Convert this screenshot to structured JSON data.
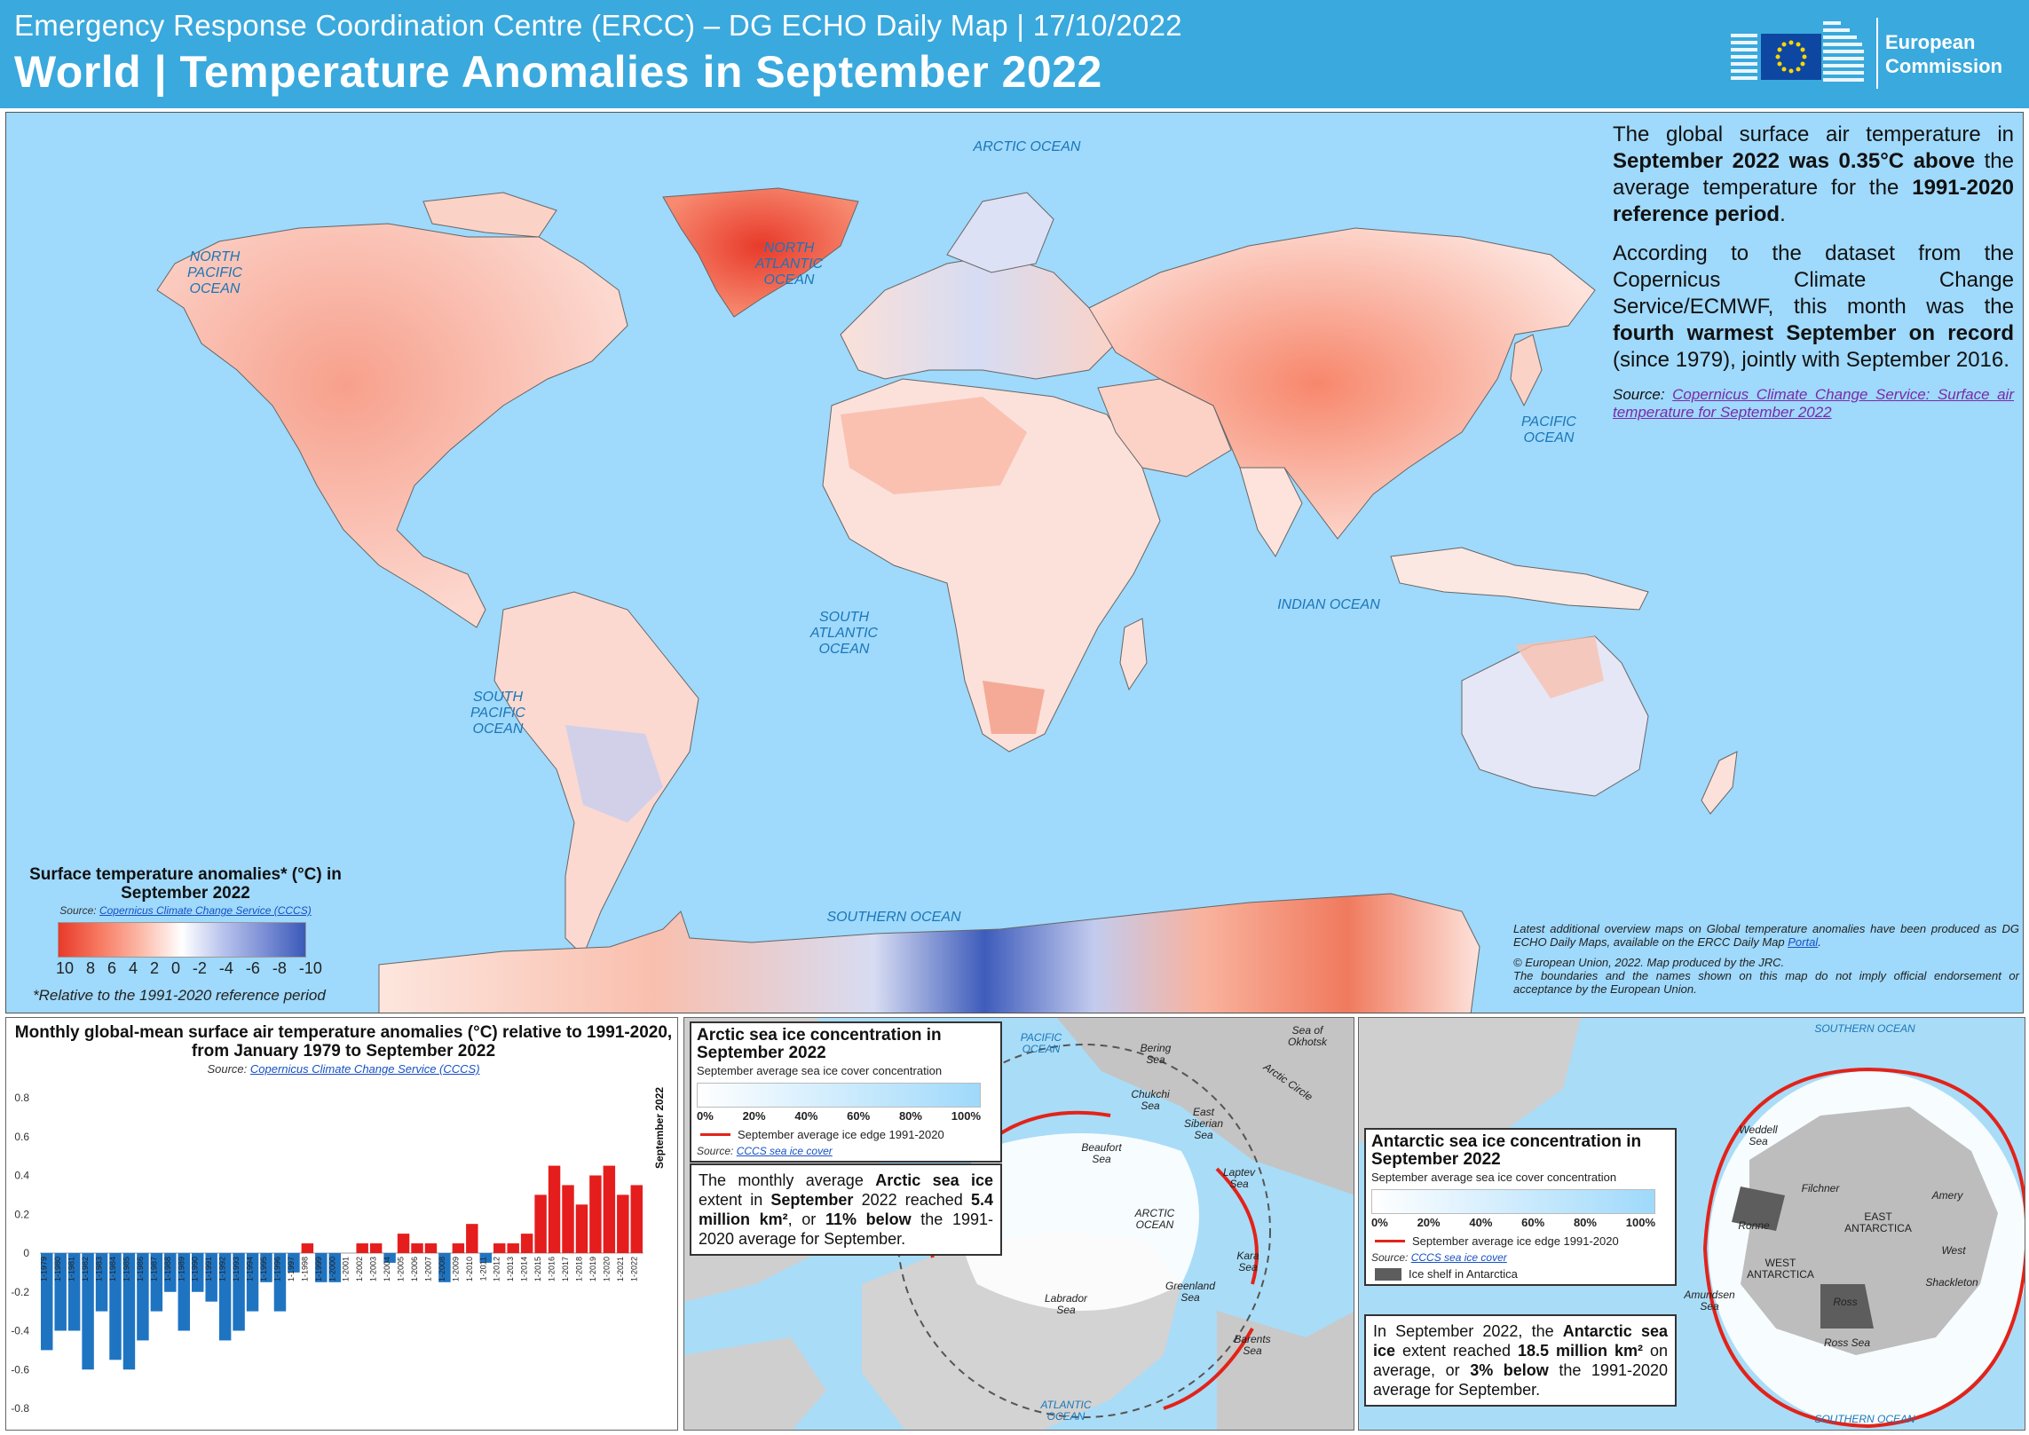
{
  "header": {
    "subtitle": "Emergency Response Coordination Centre (ERCC) – DG ECHO Daily Map | 17/10/2022",
    "title": "World | Temperature Anomalies in September 2022",
    "logo_line1": "European",
    "logo_line2": "Commission"
  },
  "oceans": {
    "arctic": "ARCTIC OCEAN",
    "north_atlantic": "NORTH ATLANTIC OCEAN",
    "north_pacific": "NORTH PACIFIC OCEAN",
    "pacific": "PACIFIC OCEAN",
    "south_atlantic": "SOUTH ATLANTIC OCEAN",
    "south_pacific": "SOUTH PACIFIC OCEAN",
    "indian": "INDIAN OCEAN",
    "southern": "SOUTHERN OCEAN"
  },
  "info": {
    "p1_a": "The global surface air temperature in ",
    "p1_b": "September 2022 was 0.35°C above",
    "p1_c": " the average temperature for the ",
    "p1_d": "1991-2020 reference period",
    "p1_e": ".",
    "p2_a": "According to the dataset from the Copernicus Climate Change Service/ECMWF, this month was the ",
    "p2_b": "fourth warmest September on record",
    "p2_c": " (since 1979), jointly with September 2016.",
    "source_label": "Source:",
    "source_link": "Copernicus Climate Change Service: Surface air temperature for September 2022"
  },
  "legend": {
    "title": "Surface temperature anomalies* (°C) in September 2022",
    "source_label": "Source:",
    "source_link": "Copernicus Climate Change Service (CCCS)",
    "ticks": [
      "10",
      "8",
      "6",
      "4",
      "2",
      "0",
      "-2",
      "-4",
      "-6",
      "-8",
      "-10"
    ],
    "note": "*Relative to the 1991-2020 reference period",
    "colors": [
      "#e83a2a",
      "#ffffff",
      "#3a59b8"
    ]
  },
  "disclaimer": {
    "line1": "Latest additional overview maps on Global temperature anomalies have been produced as DG ECHO Daily Maps, available on the ERCC Daily Map ",
    "portal": "Portal",
    "line1_end": ".",
    "line2": "© European Union, 2022. Map produced by the JRC.",
    "line3": "The boundaries and the names shown on this map do not imply official endorsement or acceptance by the European Union."
  },
  "chart": {
    "title": "Monthly global-mean surface air temperature anomalies (°C) relative to 1991-2020, from January 1979 to September 2022",
    "source_label": "Source:",
    "source_link": "Copernicus Climate Change Service (CCCS)",
    "marker_label": "September 2022",
    "y_ticks": [
      "0.8",
      "0.6",
      "0.4",
      "0.2",
      "0",
      "-0.2",
      "-0.4",
      "-0.6",
      "-0.8"
    ],
    "x_labels": [
      "1-1979",
      "1-1980",
      "1-1981",
      "1-1982",
      "1-1983",
      "1-1984",
      "1-1985",
      "1-1986",
      "1-1987",
      "1-1988",
      "1-1989",
      "1-1990",
      "1-1991",
      "1-1992",
      "1-1993",
      "1-1994",
      "1-1995",
      "1-1996",
      "1-1997",
      "1-1998",
      "1-1999",
      "1-2000",
      "1-2001",
      "1-2002",
      "1-2003",
      "1-2004",
      "1-2005",
      "1-2006",
      "1-2007",
      "1-2008",
      "1-2009",
      "1-2010",
      "1-2011",
      "1-2012",
      "1-2013",
      "1-2014",
      "1-2015",
      "1-2016",
      "1-2017",
      "1-2018",
      "1-2019",
      "1-2020",
      "1-2021",
      "1-2022"
    ],
    "pos_color": "#e51d1d",
    "neg_color": "#1f74c2"
  },
  "chart_data": {
    "type": "bar",
    "title": "Monthly global-mean surface air temperature anomalies (°C) relative to 1991-2020, from January 1979 to September 2022",
    "ylim": [
      -0.8,
      0.8
    ],
    "categories": [
      "1979",
      "1980",
      "1981",
      "1982",
      "1983",
      "1984",
      "1985",
      "1986",
      "1987",
      "1988",
      "1989",
      "1990",
      "1991",
      "1992",
      "1993",
      "1994",
      "1995",
      "1996",
      "1997",
      "1998",
      "1999",
      "2000",
      "2001",
      "2002",
      "2003",
      "2004",
      "2005",
      "2006",
      "2007",
      "2008",
      "2009",
      "2010",
      "2011",
      "2012",
      "2013",
      "2014",
      "2015",
      "2016",
      "2017",
      "2018",
      "2019",
      "2020",
      "2021",
      "2022"
    ],
    "values": [
      -0.5,
      -0.4,
      -0.4,
      -0.6,
      -0.3,
      -0.55,
      -0.6,
      -0.45,
      -0.3,
      -0.2,
      -0.4,
      -0.2,
      -0.25,
      -0.45,
      -0.4,
      -0.3,
      -0.15,
      -0.3,
      -0.1,
      0.05,
      -0.15,
      -0.15,
      0.0,
      0.05,
      0.05,
      -0.05,
      0.1,
      0.05,
      0.05,
      -0.15,
      0.05,
      0.15,
      -0.05,
      0.05,
      0.05,
      0.1,
      0.3,
      0.45,
      0.35,
      0.25,
      0.4,
      0.45,
      0.3,
      0.35
    ]
  },
  "arctic": {
    "box_title": "Arctic sea ice concentration in September 2022",
    "box_sub": "September average sea ice cover concentration",
    "pct": [
      "0%",
      "20%",
      "40%",
      "60%",
      "80%",
      "100%"
    ],
    "edge_label": "September average ice edge 1991-2020",
    "src_label": "Source:",
    "src_link": "CCCS sea ice cover",
    "text_a": "The monthly average ",
    "text_b": "Arctic sea ice",
    "text_c": " extent in ",
    "text_d": "September",
    "text_e": " 2022 reached ",
    "text_f": "5.4 million km²",
    "text_g": ", or ",
    "text_h": "11% below",
    "text_i": " the 1991-2020 average for September.",
    "seas": {
      "pacific": "PACIFIC OCEAN",
      "bering": "Bering Sea",
      "okhotsk": "Sea of Okhotsk",
      "chukchi": "Chukchi Sea",
      "east_siberian": "East Siberian Sea",
      "beaufort": "Beaufort Sea",
      "laptev": "Laptev Sea",
      "arctic": "ARCTIC OCEAN",
      "kara": "Kara Sea",
      "labrador": "Labrador Sea",
      "greenland": "Greenland Sea",
      "barents": "Barents Sea",
      "atlantic": "ATLANTIC OCEAN",
      "arctic_circle": "Arctic Circle"
    }
  },
  "antarctic": {
    "box_title": "Antarctic sea ice concentration in September 2022",
    "box_sub": "September average sea ice cover concentration",
    "pct": [
      "0%",
      "20%",
      "40%",
      "60%",
      "80%",
      "100%"
    ],
    "edge_label": "September average ice edge 1991-2020",
    "src_label": "Source:",
    "src_link": "CCCS sea ice cover",
    "shelf_label": "Ice shelf in Antarctica",
    "text_a": "In September 2022, the ",
    "text_b": "Antarctic sea ice",
    "text_c": " extent reached ",
    "text_d": "18.5 million km²",
    "text_e": " on average, or ",
    "text_f": "3% below",
    "text_g": " the 1991-2020 average for September.",
    "places": {
      "southern_top": "SOUTHERN OCEAN",
      "southern_bottom": "SOUTHERN OCEAN",
      "weddell": "Weddell Sea",
      "filchner": "Filchner",
      "amery": "Amery",
      "ronne": "Ronne",
      "east": "EAST ANTARCTICA",
      "west": "WEST ANTARCTICA",
      "west_ice": "West",
      "shackleton": "Shackleton",
      "amundsen": "Amundsen Sea",
      "ross_shelf": "Ross",
      "ross_sea": "Ross Sea"
    }
  }
}
